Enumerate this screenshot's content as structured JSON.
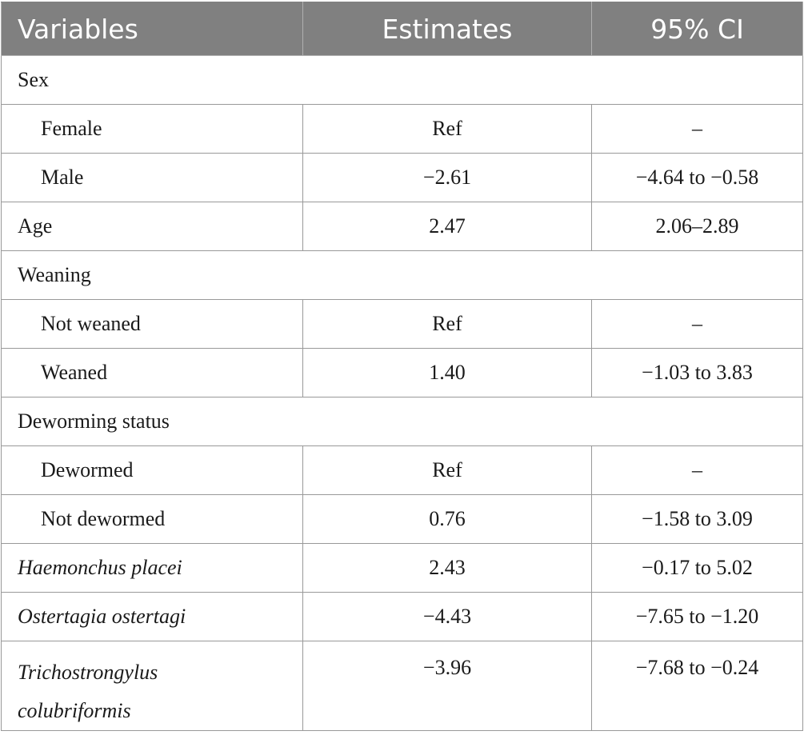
{
  "headers": {
    "variables": "Variables",
    "estimates": "Estimates",
    "ci": "95% CI"
  },
  "rows": [
    {
      "label": "Sex",
      "type": "group"
    },
    {
      "label": "Female",
      "estimate": "Ref",
      "ci": "–",
      "indent": true
    },
    {
      "label": "Male",
      "estimate": "−2.61",
      "ci": "−4.64 to −0.58",
      "indent": true
    },
    {
      "label": "Age",
      "estimate": "2.47",
      "ci": "2.06–2.89"
    },
    {
      "label": "Weaning",
      "type": "group"
    },
    {
      "label": "Not weaned",
      "estimate": "Ref",
      "ci": "–",
      "indent": true
    },
    {
      "label": "Weaned",
      "estimate": "1.40",
      "ci": "−1.03 to 3.83",
      "indent": true
    },
    {
      "label": "Deworming status",
      "type": "group"
    },
    {
      "label": "Dewormed",
      "estimate": "Ref",
      "ci": "–",
      "indent": true
    },
    {
      "label": "Not dewormed",
      "estimate": "0.76",
      "ci": "−1.58 to 3.09",
      "indent": true
    },
    {
      "label": "Haemonchus placei",
      "estimate": "2.43",
      "ci": "−0.17 to 5.02",
      "italic": true
    },
    {
      "label": "Ostertagia ostertagi",
      "estimate": "−4.43",
      "ci": "−7.65 to −1.20",
      "italic": true
    },
    {
      "label_line1": "Trichostrongylus",
      "label_line2": "colubriformis",
      "estimate": "−3.96",
      "ci": "−7.68 to −0.24",
      "italic": true
    }
  ]
}
